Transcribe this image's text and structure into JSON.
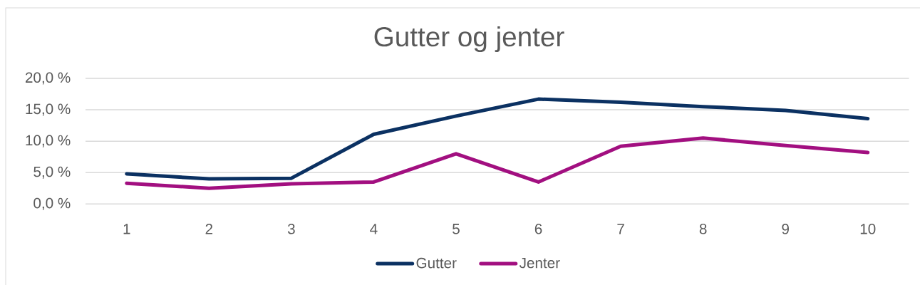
{
  "chart_data": {
    "type": "line",
    "title": "Gutter og jenter",
    "categories": [
      "1",
      "2",
      "3",
      "4",
      "5",
      "6",
      "7",
      "8",
      "9",
      "10"
    ],
    "series": [
      {
        "name": "Gutter",
        "color": "#0b3162",
        "values": [
          4.8,
          4.0,
          4.1,
          11.1,
          14.0,
          16.7,
          16.2,
          15.5,
          14.9,
          13.6
        ]
      },
      {
        "name": "Jenter",
        "color": "#a20f80",
        "values": [
          3.3,
          2.5,
          3.2,
          3.5,
          8.0,
          3.5,
          9.2,
          10.5,
          9.3,
          8.2
        ]
      }
    ],
    "ylim": [
      0,
      20
    ],
    "yticks": [
      {
        "value": 0,
        "label": "0,0 %"
      },
      {
        "value": 5,
        "label": "5,0 %"
      },
      {
        "value": 10,
        "label": "10,0 %"
      },
      {
        "value": 15,
        "label": "15,0 %"
      },
      {
        "value": 20,
        "label": "20,0 %"
      }
    ],
    "grid": "y",
    "legend": "bottom",
    "line_style": "solid"
  }
}
